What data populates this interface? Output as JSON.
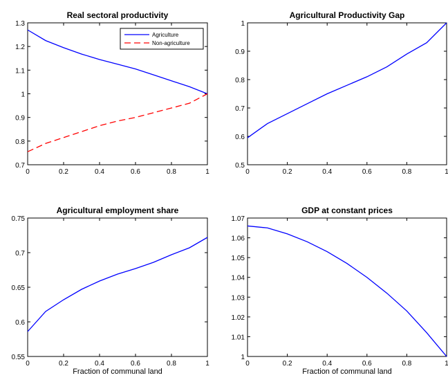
{
  "chart_data": [
    {
      "type": "line",
      "title": "Real sectoral productivity",
      "xlabel": "",
      "ylabel": "",
      "xlim": [
        0,
        1
      ],
      "ylim": [
        0.7,
        1.3
      ],
      "xticks": [
        0,
        0.2,
        0.4,
        0.6,
        0.8,
        1
      ],
      "xtick_labels": [
        "0",
        "0.2",
        "0.4",
        "0.6",
        "0.8",
        "1"
      ],
      "yticks": [
        0.7,
        0.8,
        0.9,
        1,
        1.1,
        1.2,
        1.3
      ],
      "ytick_labels": [
        "0.7",
        "0.8",
        "0.9",
        "1",
        "1.1",
        "1.2",
        "1.3"
      ],
      "legend_position": "top-right",
      "series": [
        {
          "name": "Agriculture",
          "color": "#0000ff",
          "style": "solid",
          "x": [
            0,
            0.1,
            0.2,
            0.3,
            0.4,
            0.5,
            0.6,
            0.7,
            0.8,
            0.9,
            1
          ],
          "values": [
            1.27,
            1.225,
            1.195,
            1.168,
            1.145,
            1.125,
            1.105,
            1.08,
            1.055,
            1.03,
            1.0
          ]
        },
        {
          "name": "Non-agriculture",
          "color": "#ff0000",
          "style": "dashed",
          "x": [
            0,
            0.1,
            0.2,
            0.3,
            0.4,
            0.5,
            0.6,
            0.7,
            0.8,
            0.9,
            1
          ],
          "values": [
            0.755,
            0.79,
            0.815,
            0.84,
            0.865,
            0.885,
            0.9,
            0.92,
            0.94,
            0.96,
            1.0
          ]
        }
      ]
    },
    {
      "type": "line",
      "title": "Agricultural Productivity Gap",
      "xlabel": "",
      "ylabel": "",
      "xlim": [
        0,
        1
      ],
      "ylim": [
        0.5,
        1
      ],
      "xticks": [
        0,
        0.2,
        0.4,
        0.6,
        0.8,
        1
      ],
      "xtick_labels": [
        "0",
        "0.2",
        "0.4",
        "0.6",
        "0.8",
        "1"
      ],
      "yticks": [
        0.5,
        0.6,
        0.7,
        0.8,
        0.9,
        1
      ],
      "ytick_labels": [
        "0.5",
        "0.6",
        "0.7",
        "0.8",
        "0.9",
        "1"
      ],
      "series": [
        {
          "color": "#0000ff",
          "style": "solid",
          "x": [
            0,
            0.1,
            0.2,
            0.3,
            0.4,
            0.5,
            0.6,
            0.7,
            0.8,
            0.9,
            1
          ],
          "values": [
            0.595,
            0.645,
            0.68,
            0.715,
            0.75,
            0.78,
            0.81,
            0.845,
            0.89,
            0.93,
            1.0
          ]
        }
      ]
    },
    {
      "type": "line",
      "title": "Agricultural employment share",
      "xlabel": "Fraction of communal land",
      "ylabel": "",
      "xlim": [
        0,
        1
      ],
      "ylim": [
        0.55,
        0.75
      ],
      "xticks": [
        0,
        0.2,
        0.4,
        0.6,
        0.8,
        1
      ],
      "xtick_labels": [
        "0",
        "0.2",
        "0.4",
        "0.6",
        "0.8",
        "1"
      ],
      "yticks": [
        0.55,
        0.6,
        0.65,
        0.7,
        0.75
      ],
      "ytick_labels": [
        "0.55",
        "0.6",
        "0.65",
        "0.7",
        "0.75"
      ],
      "series": [
        {
          "color": "#0000ff",
          "style": "solid",
          "x": [
            0,
            0.1,
            0.2,
            0.3,
            0.4,
            0.5,
            0.6,
            0.7,
            0.8,
            0.9,
            1
          ],
          "values": [
            0.586,
            0.615,
            0.632,
            0.647,
            0.659,
            0.669,
            0.677,
            0.686,
            0.697,
            0.707,
            0.722
          ]
        }
      ]
    },
    {
      "type": "line",
      "title": "GDP at constant prices",
      "xlabel": "Fraction of communal land",
      "ylabel": "",
      "xlim": [
        0,
        1
      ],
      "ylim": [
        1,
        1.07
      ],
      "xticks": [
        0,
        0.2,
        0.4,
        0.6,
        0.8,
        1
      ],
      "xtick_labels": [
        "0",
        "0.2",
        "0.4",
        "0.6",
        "0.8",
        "1"
      ],
      "yticks": [
        1,
        1.01,
        1.02,
        1.03,
        1.04,
        1.05,
        1.06,
        1.07
      ],
      "ytick_labels": [
        "1",
        "1.01",
        "1.02",
        "1.03",
        "1.04",
        "1.05",
        "1.06",
        "1.07"
      ],
      "series": [
        {
          "color": "#0000ff",
          "style": "solid",
          "x": [
            0,
            0.1,
            0.2,
            0.3,
            0.4,
            0.5,
            0.6,
            0.7,
            0.8,
            0.9,
            1
          ],
          "values": [
            1.066,
            1.065,
            1.062,
            1.058,
            1.053,
            1.047,
            1.04,
            1.032,
            1.023,
            1.012,
            1.0
          ]
        }
      ]
    }
  ]
}
